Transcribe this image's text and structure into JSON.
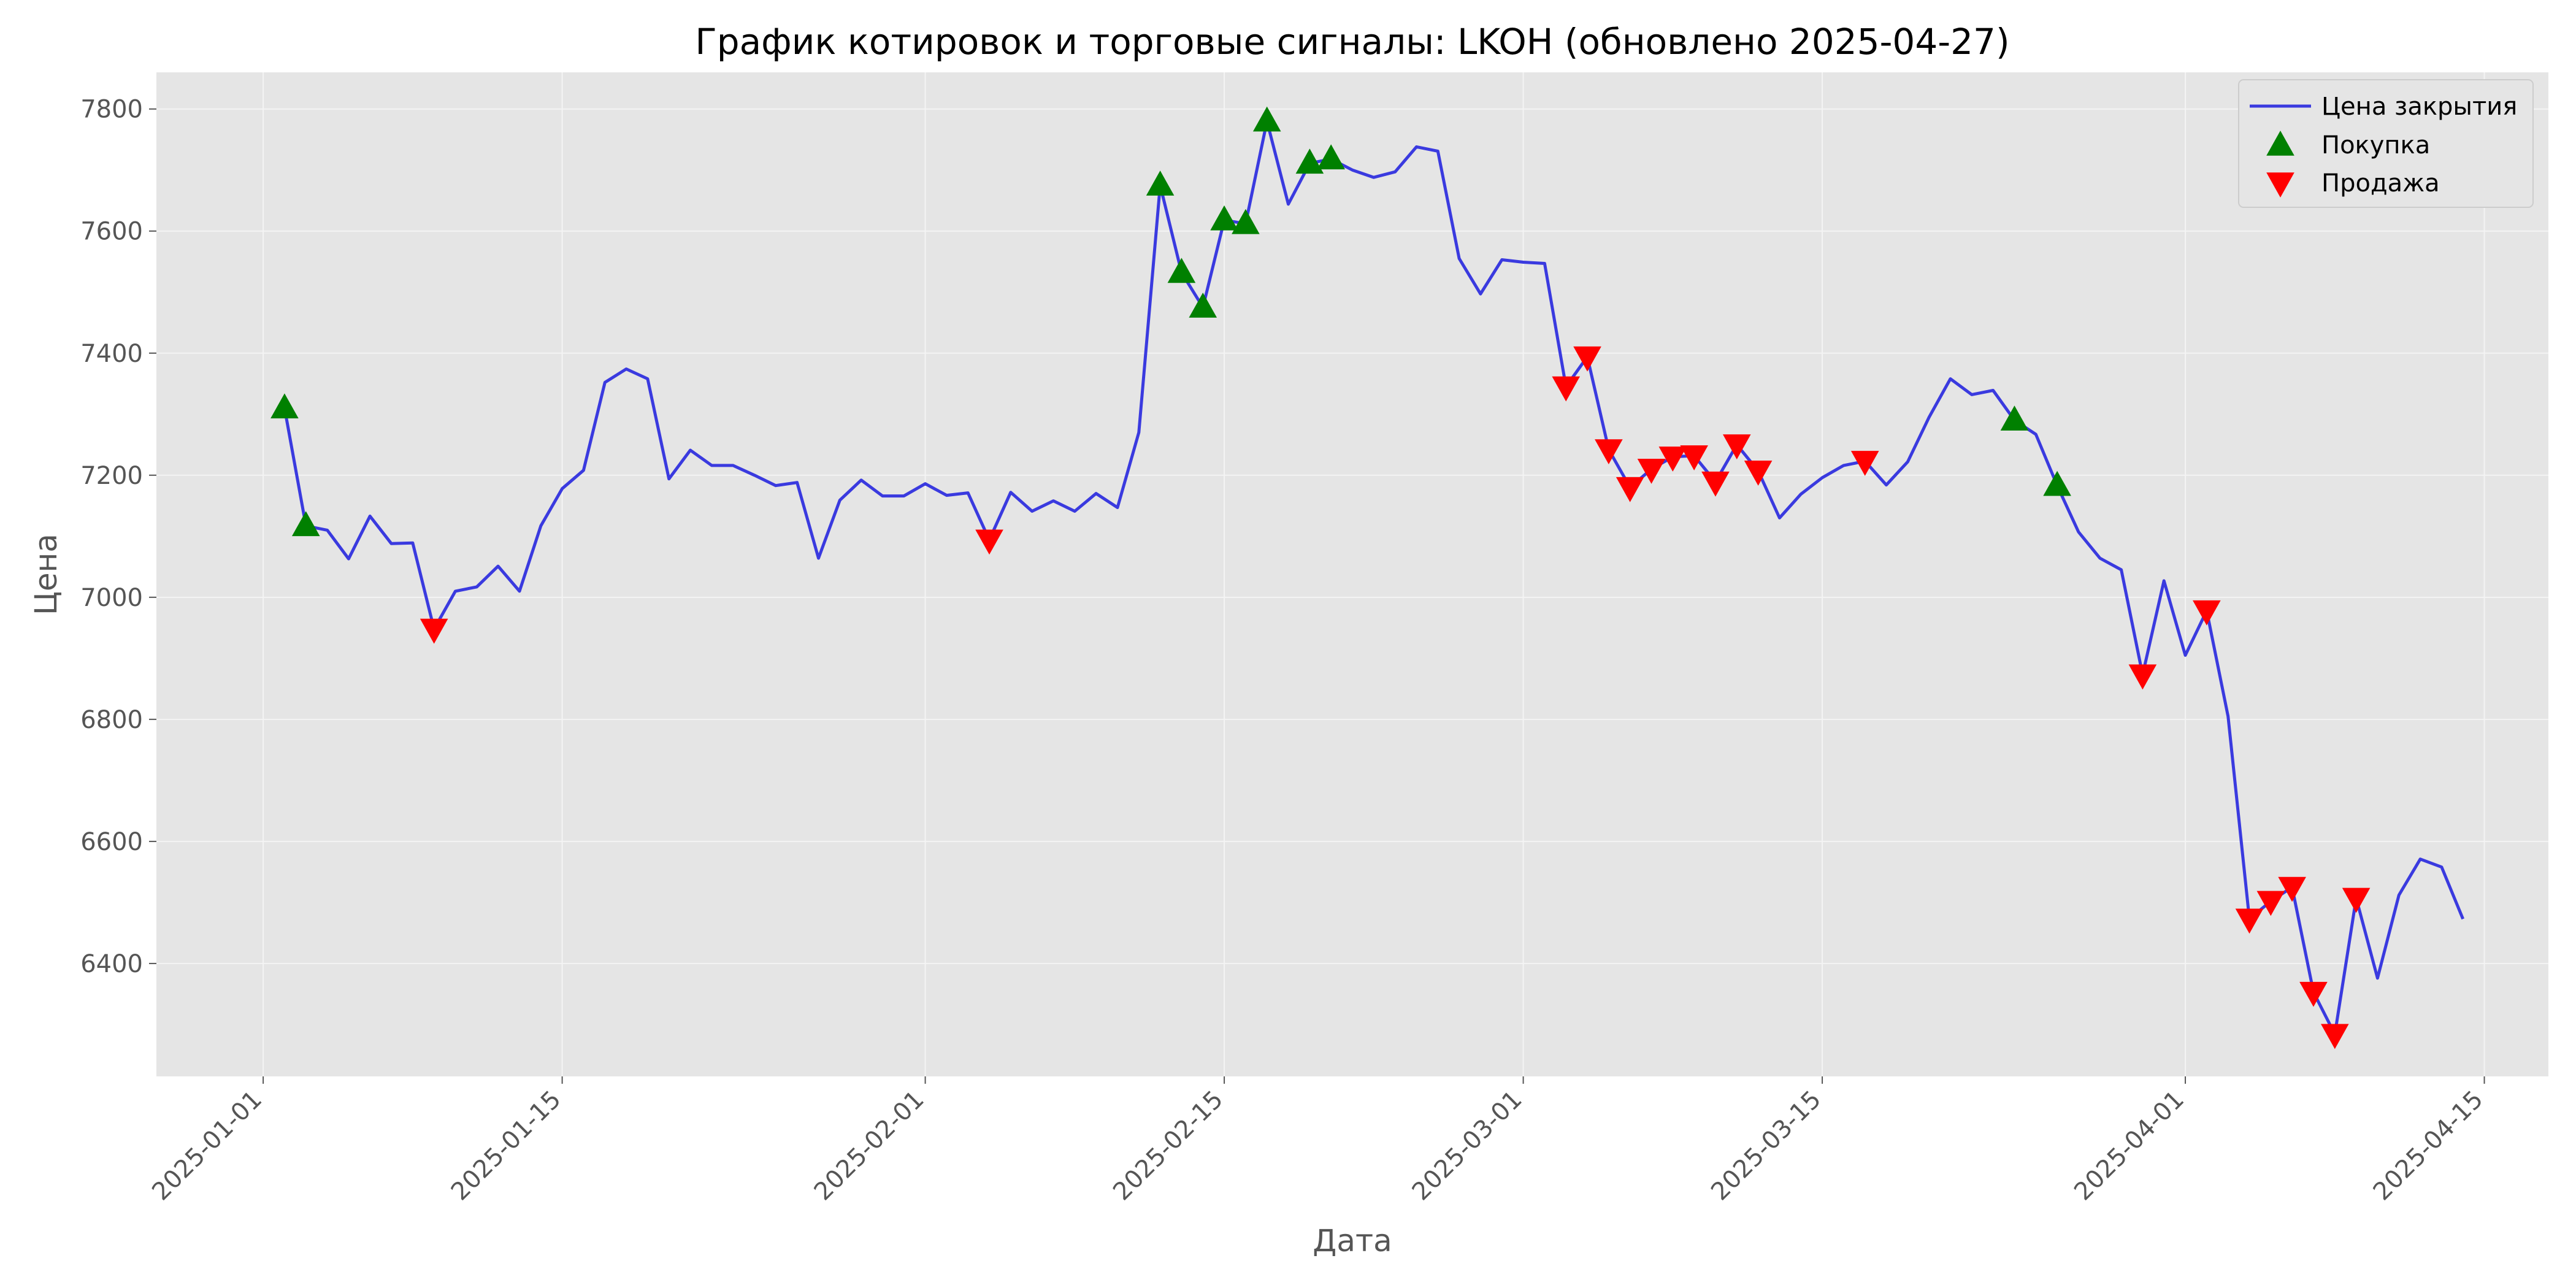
{
  "chart_data": {
    "type": "line",
    "title": "График котировок и торговые сигналы: LKOH (обновлено 2025-04-27)",
    "xlabel": "Дата",
    "ylabel": "Цена",
    "xlim": [
      "2024-12-27",
      "2025-04-18"
    ],
    "ylim": [
      6215,
      7860
    ],
    "grid": true,
    "legend_position": "top-right",
    "x_ticks": [
      "2025-01-01",
      "2025-01-15",
      "2025-02-01",
      "2025-02-15",
      "2025-03-01",
      "2025-03-15",
      "2025-04-01",
      "2025-04-15"
    ],
    "y_ticks": [
      6400,
      6600,
      6800,
      7000,
      7200,
      7400,
      7600,
      7800
    ],
    "colors": {
      "close": "#3a3adf",
      "buy": "#008000",
      "sell": "#ff0000"
    },
    "series": [
      {
        "name": "Цена закрытия",
        "type": "line",
        "points": [
          [
            "2025-01-02",
            7310
          ],
          [
            "2025-01-03",
            7117
          ],
          [
            "2025-01-04",
            7110
          ],
          [
            "2025-01-05",
            7063
          ],
          [
            "2025-01-06",
            7133
          ],
          [
            "2025-01-07",
            7088
          ],
          [
            "2025-01-08",
            7089
          ],
          [
            "2025-01-09",
            6948
          ],
          [
            "2025-01-10",
            7010
          ],
          [
            "2025-01-11",
            7017
          ],
          [
            "2025-01-12",
            7051
          ],
          [
            "2025-01-13",
            7010
          ],
          [
            "2025-01-14",
            7117
          ],
          [
            "2025-01-15",
            7178
          ],
          [
            "2025-01-16",
            7208
          ],
          [
            "2025-01-17",
            7352
          ],
          [
            "2025-01-18",
            7374
          ],
          [
            "2025-01-19",
            7358
          ],
          [
            "2025-01-20",
            7194
          ],
          [
            "2025-01-21",
            7241
          ],
          [
            "2025-01-22",
            7216
          ],
          [
            "2025-01-23",
            7216
          ],
          [
            "2025-01-24",
            7200
          ],
          [
            "2025-01-25",
            7183
          ],
          [
            "2025-01-26",
            7188
          ],
          [
            "2025-01-27",
            7064
          ],
          [
            "2025-01-28",
            7159
          ],
          [
            "2025-01-29",
            7192
          ],
          [
            "2025-01-30",
            7166
          ],
          [
            "2025-01-31",
            7166
          ],
          [
            "2025-02-01",
            7186
          ],
          [
            "2025-02-02",
            7167
          ],
          [
            "2025-02-03",
            7171
          ],
          [
            "2025-02-04",
            7094
          ],
          [
            "2025-02-05",
            7172
          ],
          [
            "2025-02-06",
            7141
          ],
          [
            "2025-02-07",
            7158
          ],
          [
            "2025-02-08",
            7141
          ],
          [
            "2025-02-09",
            7170
          ],
          [
            "2025-02-10",
            7147
          ],
          [
            "2025-02-11",
            7270
          ],
          [
            "2025-02-12",
            7675
          ],
          [
            "2025-02-13",
            7532
          ],
          [
            "2025-02-14",
            7475
          ],
          [
            "2025-02-15",
            7618
          ],
          [
            "2025-02-16",
            7612
          ],
          [
            "2025-02-17",
            7780
          ],
          [
            "2025-02-18",
            7644
          ],
          [
            "2025-02-19",
            7711
          ],
          [
            "2025-02-20",
            7718
          ],
          [
            "2025-02-21",
            7700
          ],
          [
            "2025-02-22",
            7688
          ],
          [
            "2025-02-23",
            7697
          ],
          [
            "2025-02-24",
            7738
          ],
          [
            "2025-02-25",
            7731
          ],
          [
            "2025-02-26",
            7555
          ],
          [
            "2025-02-27",
            7497
          ],
          [
            "2025-02-28",
            7553
          ],
          [
            "2025-03-01",
            7549
          ],
          [
            "2025-03-02",
            7547
          ],
          [
            "2025-03-03",
            7345
          ],
          [
            "2025-03-04",
            7394
          ],
          [
            "2025-03-05",
            7242
          ],
          [
            "2025-03-06",
            7180
          ],
          [
            "2025-03-07",
            7210
          ],
          [
            "2025-03-08",
            7230
          ],
          [
            "2025-03-09",
            7232
          ],
          [
            "2025-03-10",
            7189
          ],
          [
            "2025-03-11",
            7250
          ],
          [
            "2025-03-12",
            7207
          ],
          [
            "2025-03-13",
            7130
          ],
          [
            "2025-03-14",
            7169
          ],
          [
            "2025-03-15",
            7196
          ],
          [
            "2025-03-16",
            7216
          ],
          [
            "2025-03-17",
            7223
          ],
          [
            "2025-03-18",
            7184
          ],
          [
            "2025-03-19",
            7222
          ],
          [
            "2025-03-20",
            7295
          ],
          [
            "2025-03-21",
            7358
          ],
          [
            "2025-03-22",
            7332
          ],
          [
            "2025-03-23",
            7339
          ],
          [
            "2025-03-24",
            7290
          ],
          [
            "2025-03-25",
            7267
          ],
          [
            "2025-03-26",
            7183
          ],
          [
            "2025-03-27",
            7107
          ],
          [
            "2025-03-28",
            7064
          ],
          [
            "2025-03-29",
            7045
          ],
          [
            "2025-03-30",
            6873
          ],
          [
            "2025-03-31",
            7027
          ],
          [
            "2025-04-01",
            6905
          ],
          [
            "2025-04-02",
            6978
          ],
          [
            "2025-04-03",
            6805
          ],
          [
            "2025-04-04",
            6473
          ],
          [
            "2025-04-05",
            6502
          ],
          [
            "2025-04-06",
            6525
          ],
          [
            "2025-04-07",
            6353
          ],
          [
            "2025-04-08",
            6284
          ],
          [
            "2025-04-09",
            6507
          ],
          [
            "2025-04-10",
            6376
          ],
          [
            "2025-04-11",
            6512
          ],
          [
            "2025-04-12",
            6571
          ],
          [
            "2025-04-13",
            6558
          ],
          [
            "2025-04-14",
            6473
          ]
        ]
      },
      {
        "name": "Покупка",
        "type": "scatter",
        "marker": "triangle-up",
        "points": [
          [
            "2025-01-02",
            7310
          ],
          [
            "2025-01-03",
            7117
          ],
          [
            "2025-02-12",
            7675
          ],
          [
            "2025-02-13",
            7532
          ],
          [
            "2025-02-14",
            7475
          ],
          [
            "2025-02-15",
            7618
          ],
          [
            "2025-02-16",
            7612
          ],
          [
            "2025-02-17",
            7780
          ],
          [
            "2025-02-19",
            7711
          ],
          [
            "2025-02-20",
            7718
          ],
          [
            "2025-03-24",
            7290
          ],
          [
            "2025-03-26",
            7183
          ]
        ]
      },
      {
        "name": "Продажа",
        "type": "scatter",
        "marker": "triangle-down",
        "points": [
          [
            "2025-01-09",
            6948
          ],
          [
            "2025-02-04",
            7094
          ],
          [
            "2025-03-03",
            7345
          ],
          [
            "2025-03-04",
            7394
          ],
          [
            "2025-03-05",
            7242
          ],
          [
            "2025-03-06",
            7180
          ],
          [
            "2025-03-07",
            7210
          ],
          [
            "2025-03-08",
            7230
          ],
          [
            "2025-03-09",
            7232
          ],
          [
            "2025-03-10",
            7189
          ],
          [
            "2025-03-11",
            7250
          ],
          [
            "2025-03-12",
            7207
          ],
          [
            "2025-03-17",
            7223
          ],
          [
            "2025-03-30",
            6873
          ],
          [
            "2025-04-02",
            6978
          ],
          [
            "2025-04-04",
            6473
          ],
          [
            "2025-04-05",
            6502
          ],
          [
            "2025-04-06",
            6525
          ],
          [
            "2025-04-07",
            6353
          ],
          [
            "2025-04-08",
            6284
          ],
          [
            "2025-04-09",
            6507
          ]
        ]
      }
    ]
  }
}
